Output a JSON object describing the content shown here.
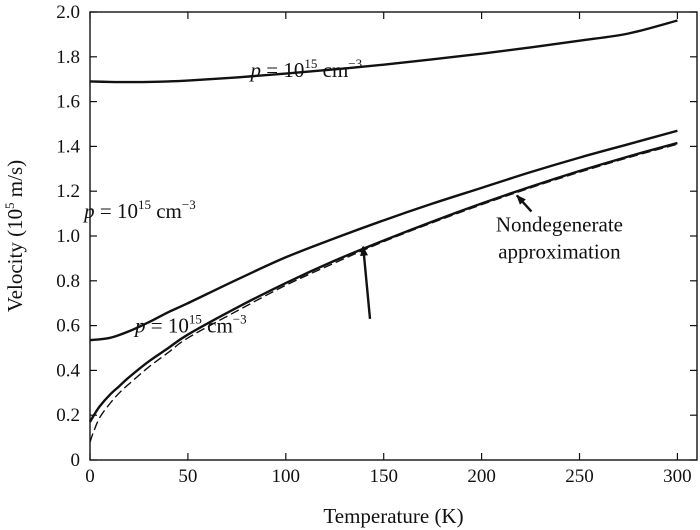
{
  "chart_data": {
    "type": "line",
    "xlabel": "Temperature (K)",
    "ylabel_parts": [
      "Velocity (10",
      "5",
      " m/s)"
    ],
    "xlim": [
      0,
      310
    ],
    "ylim": [
      0,
      2.0
    ],
    "xticks": [
      0,
      50,
      100,
      150,
      200,
      250,
      300
    ],
    "yticks": [
      0,
      0.2,
      0.4,
      0.6,
      0.8,
      1.0,
      1.2,
      1.4,
      1.6,
      1.8,
      2.0
    ],
    "xtick_labels": [
      "0",
      "50",
      "100",
      "150",
      "200",
      "250",
      "300"
    ],
    "ytick_labels": [
      "0",
      "0.2",
      "0.4",
      "0.6",
      "0.8",
      "1.0",
      "1.2",
      "1.4",
      "1.6",
      "1.8",
      "2.0"
    ],
    "grid": false,
    "series": [
      {
        "style": "solid",
        "x": [
          0,
          10,
          20,
          30,
          40,
          50,
          75,
          100,
          125,
          150,
          175,
          200,
          225,
          250,
          275,
          300
        ],
        "y": [
          1.69,
          1.688,
          1.687,
          1.688,
          1.69,
          1.694,
          1.708,
          1.725,
          1.744,
          1.765,
          1.789,
          1.814,
          1.842,
          1.872,
          1.904,
          1.962
        ]
      },
      {
        "style": "solid",
        "x": [
          0,
          10,
          20,
          30,
          40,
          50,
          75,
          100,
          125,
          150,
          175,
          200,
          225,
          250,
          275,
          300
        ],
        "y": [
          0.535,
          0.545,
          0.575,
          0.615,
          0.66,
          0.7,
          0.805,
          0.905,
          0.99,
          1.07,
          1.145,
          1.215,
          1.285,
          1.35,
          1.41,
          1.47
        ]
      },
      {
        "style": "solid",
        "x": [
          0,
          2,
          5,
          10,
          15,
          20,
          30,
          40,
          50,
          75,
          100,
          125,
          150,
          175,
          200,
          225,
          250,
          275,
          300
        ],
        "y": [
          0.17,
          0.2,
          0.24,
          0.29,
          0.33,
          0.37,
          0.44,
          0.5,
          0.56,
          0.68,
          0.79,
          0.89,
          0.98,
          1.065,
          1.145,
          1.22,
          1.29,
          1.355,
          1.415
        ]
      },
      {
        "style": "dashed",
        "x": [
          0,
          2,
          5,
          10,
          15,
          20,
          30,
          40,
          50,
          75,
          100,
          125,
          150,
          175,
          200,
          225,
          250,
          275,
          300
        ],
        "y": [
          0.08,
          0.13,
          0.19,
          0.25,
          0.3,
          0.34,
          0.415,
          0.48,
          0.545,
          0.665,
          0.78,
          0.88,
          0.975,
          1.06,
          1.14,
          1.215,
          1.285,
          1.35,
          1.41
        ]
      }
    ],
    "annotations": [
      {
        "italic": "p",
        "text": " = 10",
        "sup": "15",
        "unit": " cm",
        "unit_sup": "−3",
        "near_curve": 0,
        "at": [
          82,
          1.71
        ]
      },
      {
        "italic": "p",
        "text": " = 10",
        "sup": "15",
        "unit": " cm",
        "unit_sup": "−3",
        "near_curve": 1,
        "at": [
          -3,
          1.08
        ]
      },
      {
        "italic": "p",
        "text": " = 10",
        "sup": "15",
        "unit": " cm",
        "unit_sup": "−3",
        "near_curve": 2,
        "at": [
          23,
          0.57
        ],
        "arrow_to": [
          139,
          0.97
        ]
      },
      {
        "text_lines": [
          "Nondegenerate",
          "approximation"
        ],
        "near_curve": 3,
        "at": [
          204,
          1.02
        ],
        "arrow_to": [
          218,
          1.19
        ]
      }
    ]
  }
}
